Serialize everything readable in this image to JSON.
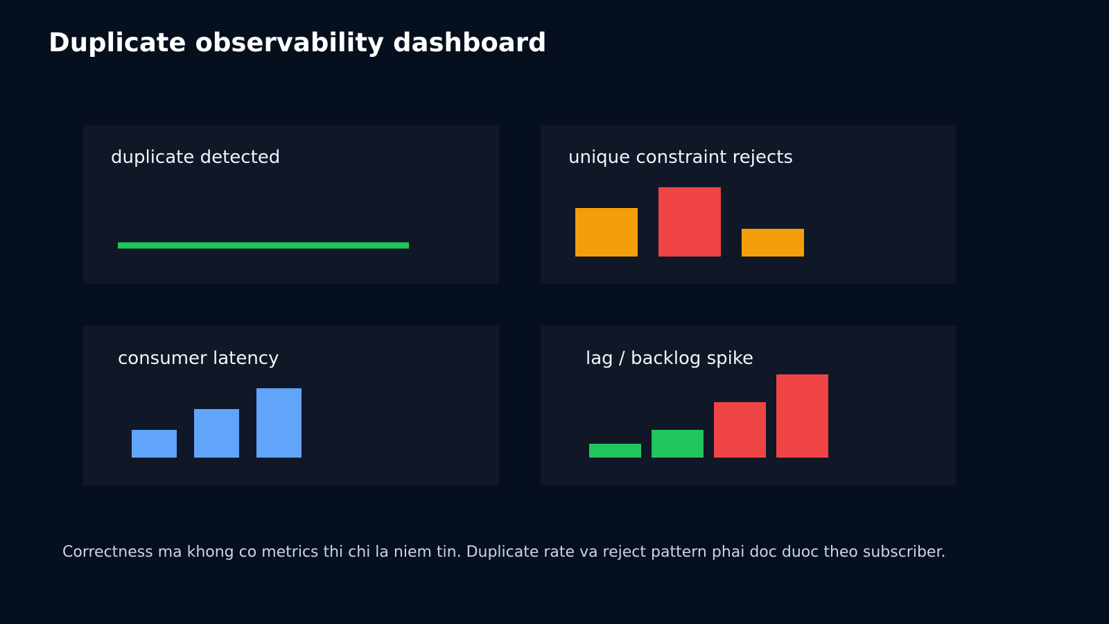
{
  "page": {
    "title": "Duplicate observability dashboard",
    "footer_note": "Correctness ma khong co metrics thi chi la niem tin. Duplicate rate va reject pattern phai doc duoc theo subscriber."
  },
  "colors": {
    "background": "#060f1d",
    "panel": "#101726",
    "green": "#22c55e",
    "amber": "#f59e0b",
    "red": "#ef4444",
    "blue": "#60a5fa"
  },
  "panels": [
    {
      "title": "duplicate detected"
    },
    {
      "title": "unique constraint rejects"
    },
    {
      "title": "consumer latency"
    },
    {
      "title": "lag / backlog spike"
    }
  ],
  "chart_data": [
    {
      "type": "line",
      "title": "duplicate detected",
      "series": [
        {
          "x": [
            0,
            1,
            2,
            3,
            4
          ],
          "values": [
            0,
            0,
            0,
            0,
            0
          ],
          "color": "#22c55e"
        }
      ],
      "ylim": [
        0,
        1
      ],
      "grid": false
    },
    {
      "type": "bar",
      "title": "unique constraint rejects",
      "values": [
        70,
        100,
        40
      ],
      "colors": [
        "#f59e0b",
        "#ef4444",
        "#f59e0b"
      ],
      "ylim": [
        0,
        100
      ],
      "grid": false
    },
    {
      "type": "bar",
      "title": "consumer latency",
      "values": [
        40,
        70,
        100
      ],
      "colors": [
        "#60a5fa",
        "#60a5fa",
        "#60a5fa"
      ],
      "ylim": [
        0,
        100
      ],
      "grid": false
    },
    {
      "type": "bar",
      "title": "lag / backlog spike",
      "values": [
        20,
        40,
        80,
        120
      ],
      "colors": [
        "#22c55e",
        "#22c55e",
        "#ef4444",
        "#ef4444"
      ],
      "ylim": [
        0,
        120
      ],
      "grid": false
    }
  ]
}
